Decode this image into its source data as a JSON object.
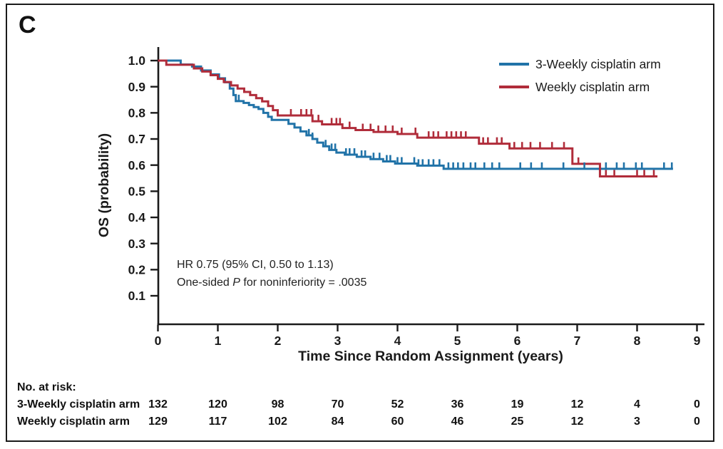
{
  "panel_label": "C",
  "colors": {
    "blue": "#2173a8",
    "red": "#b02c3a",
    "axis": "#1a1a1a"
  },
  "legend": [
    {
      "label": "3-Weekly cisplatin arm"
    },
    {
      "label": "Weekly cisplatin arm"
    }
  ],
  "annotation": {
    "line1": "HR 0.75 (95% CI, 0.50 to 1.13)",
    "line2_prefix": "One-sided ",
    "line2_italic": "P",
    "line2_suffix": " for noninferiority = .0035"
  },
  "at_risk": {
    "title": "No. at risk:",
    "times": [
      0,
      1,
      2,
      3,
      4,
      5,
      6,
      7,
      8,
      9
    ],
    "rows": [
      {
        "label": "3-Weekly cisplatin arm",
        "counts": [
          132,
          120,
          98,
          70,
          52,
          36,
          19,
          12,
          4,
          0
        ]
      },
      {
        "label": "Weekly cisplatin arm",
        "counts": [
          129,
          117,
          102,
          84,
          60,
          46,
          25,
          12,
          3,
          0
        ]
      }
    ]
  },
  "chart_data": {
    "type": "line",
    "subtype": "kaplan-meier-step",
    "title": "",
    "xlabel": "Time Since Random Assignment (years)",
    "ylabel": "OS (probability)",
    "xlim": [
      0,
      9
    ],
    "ylim": [
      0,
      1.0
    ],
    "xticks": [
      0,
      1,
      2,
      3,
      4,
      5,
      6,
      7,
      8,
      9
    ],
    "yticks": [
      0.1,
      0.2,
      0.3,
      0.4,
      0.5,
      0.6,
      0.7,
      0.8,
      0.9,
      1.0
    ],
    "grid": false,
    "legend_position": "upper right",
    "series": [
      {
        "name": "3-Weekly cisplatin arm",
        "color": "#2173a8",
        "end_time": 8.6,
        "points": [
          [
            0,
            1.0
          ],
          [
            0.38,
            0.985
          ],
          [
            0.57,
            0.977
          ],
          [
            0.72,
            0.962
          ],
          [
            0.88,
            0.947
          ],
          [
            1.02,
            0.932
          ],
          [
            1.12,
            0.917
          ],
          [
            1.2,
            0.893
          ],
          [
            1.26,
            0.868
          ],
          [
            1.3,
            0.845
          ],
          [
            1.43,
            0.838
          ],
          [
            1.52,
            0.83
          ],
          [
            1.6,
            0.822
          ],
          [
            1.68,
            0.815
          ],
          [
            1.76,
            0.8
          ],
          [
            1.84,
            0.785
          ],
          [
            1.9,
            0.773
          ],
          [
            2.18,
            0.758
          ],
          [
            2.28,
            0.744
          ],
          [
            2.38,
            0.729
          ],
          [
            2.48,
            0.714
          ],
          [
            2.58,
            0.7
          ],
          [
            2.66,
            0.686
          ],
          [
            2.76,
            0.672
          ],
          [
            2.86,
            0.658
          ],
          [
            2.98,
            0.648
          ],
          [
            3.12,
            0.64
          ],
          [
            3.32,
            0.632
          ],
          [
            3.55,
            0.623
          ],
          [
            3.76,
            0.614
          ],
          [
            3.96,
            0.606
          ],
          [
            4.33,
            0.598
          ],
          [
            4.77,
            0.586
          ]
        ],
        "censor_times": [
          1.35,
          2.52,
          2.58,
          2.8,
          2.9,
          2.96,
          3.14,
          3.2,
          3.28,
          3.4,
          3.46,
          3.6,
          3.7,
          3.82,
          3.88,
          4.0,
          4.07,
          4.28,
          4.35,
          4.42,
          4.52,
          4.6,
          4.7,
          4.85,
          4.93,
          5.01,
          5.1,
          5.22,
          5.3,
          5.45,
          5.58,
          5.7,
          6.05,
          6.23,
          6.41,
          6.77,
          7.12,
          7.48,
          7.66,
          7.78,
          7.98,
          8.08,
          8.45,
          8.58
        ]
      },
      {
        "name": "Weekly cisplatin arm",
        "color": "#b02c3a",
        "end_time": 8.34,
        "points": [
          [
            0,
            1.0
          ],
          [
            0.14,
            0.984
          ],
          [
            0.6,
            0.97
          ],
          [
            0.74,
            0.958
          ],
          [
            0.88,
            0.944
          ],
          [
            1.0,
            0.93
          ],
          [
            1.1,
            0.918
          ],
          [
            1.22,
            0.905
          ],
          [
            1.33,
            0.893
          ],
          [
            1.44,
            0.88
          ],
          [
            1.54,
            0.868
          ],
          [
            1.64,
            0.856
          ],
          [
            1.74,
            0.844
          ],
          [
            1.84,
            0.826
          ],
          [
            1.92,
            0.81
          ],
          [
            2.0,
            0.79
          ],
          [
            2.58,
            0.768
          ],
          [
            2.74,
            0.756
          ],
          [
            3.08,
            0.742
          ],
          [
            3.3,
            0.734
          ],
          [
            3.6,
            0.727
          ],
          [
            4.0,
            0.719
          ],
          [
            4.33,
            0.705
          ],
          [
            5.36,
            0.682
          ],
          [
            5.87,
            0.664
          ],
          [
            6.92,
            0.605
          ],
          [
            7.38,
            0.557
          ]
        ],
        "censor_times": [
          2.22,
          2.39,
          2.48,
          2.56,
          2.68,
          2.9,
          2.98,
          3.04,
          3.2,
          3.42,
          3.55,
          3.68,
          3.8,
          3.92,
          4.07,
          4.3,
          4.52,
          4.6,
          4.68,
          4.82,
          4.9,
          4.98,
          5.06,
          5.14,
          5.43,
          5.51,
          5.66,
          5.74,
          5.95,
          6.08,
          6.22,
          6.38,
          6.58,
          6.78,
          7.02,
          7.48,
          7.62,
          8.0,
          8.12,
          8.28
        ]
      }
    ]
  }
}
